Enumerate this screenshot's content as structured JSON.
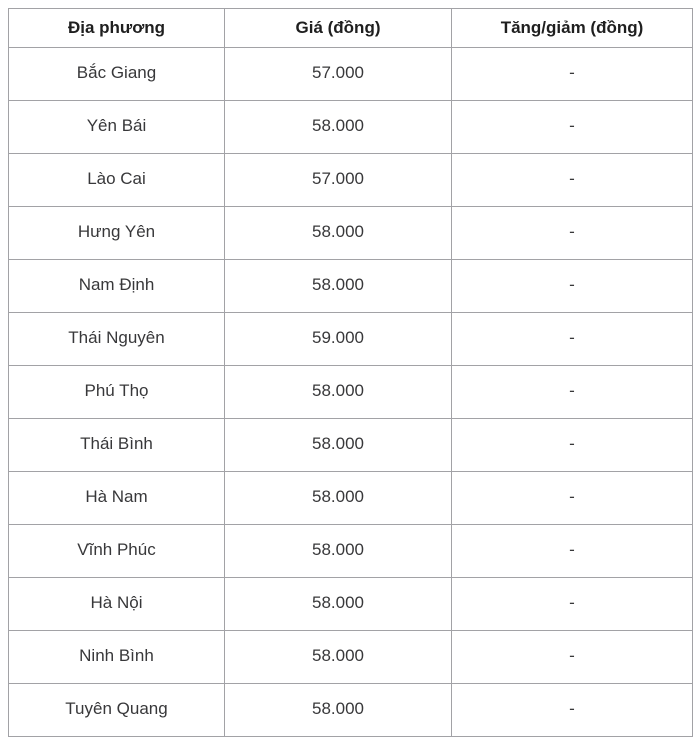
{
  "chart_data": {
    "type": "table",
    "columns": [
      "Địa phương",
      "Giá (đồng)",
      "Tăng/giảm (đồng)"
    ],
    "rows": [
      [
        "Bắc Giang",
        "57.000",
        "-"
      ],
      [
        "Yên Bái",
        "58.000",
        "-"
      ],
      [
        "Lào Cai",
        "57.000",
        "-"
      ],
      [
        "Hưng Yên",
        "58.000",
        "-"
      ],
      [
        "Nam Định",
        "58.000",
        "-"
      ],
      [
        "Thái Nguyên",
        "59.000",
        "-"
      ],
      [
        "Phú Thọ",
        "58.000",
        "-"
      ],
      [
        "Thái Bình",
        "58.000",
        "-"
      ],
      [
        "Hà Nam",
        "58.000",
        "-"
      ],
      [
        "Vĩnh Phúc",
        "58.000",
        "-"
      ],
      [
        "Hà Nội",
        "58.000",
        "-"
      ],
      [
        "Ninh Bình",
        "58.000",
        "-"
      ],
      [
        "Tuyên Quang",
        "58.000",
        "-"
      ]
    ]
  },
  "colors": {
    "border": "#a2a2a6",
    "header_text": "#1f1f1f",
    "cell_text": "#38383a",
    "background": "#ffffff"
  }
}
